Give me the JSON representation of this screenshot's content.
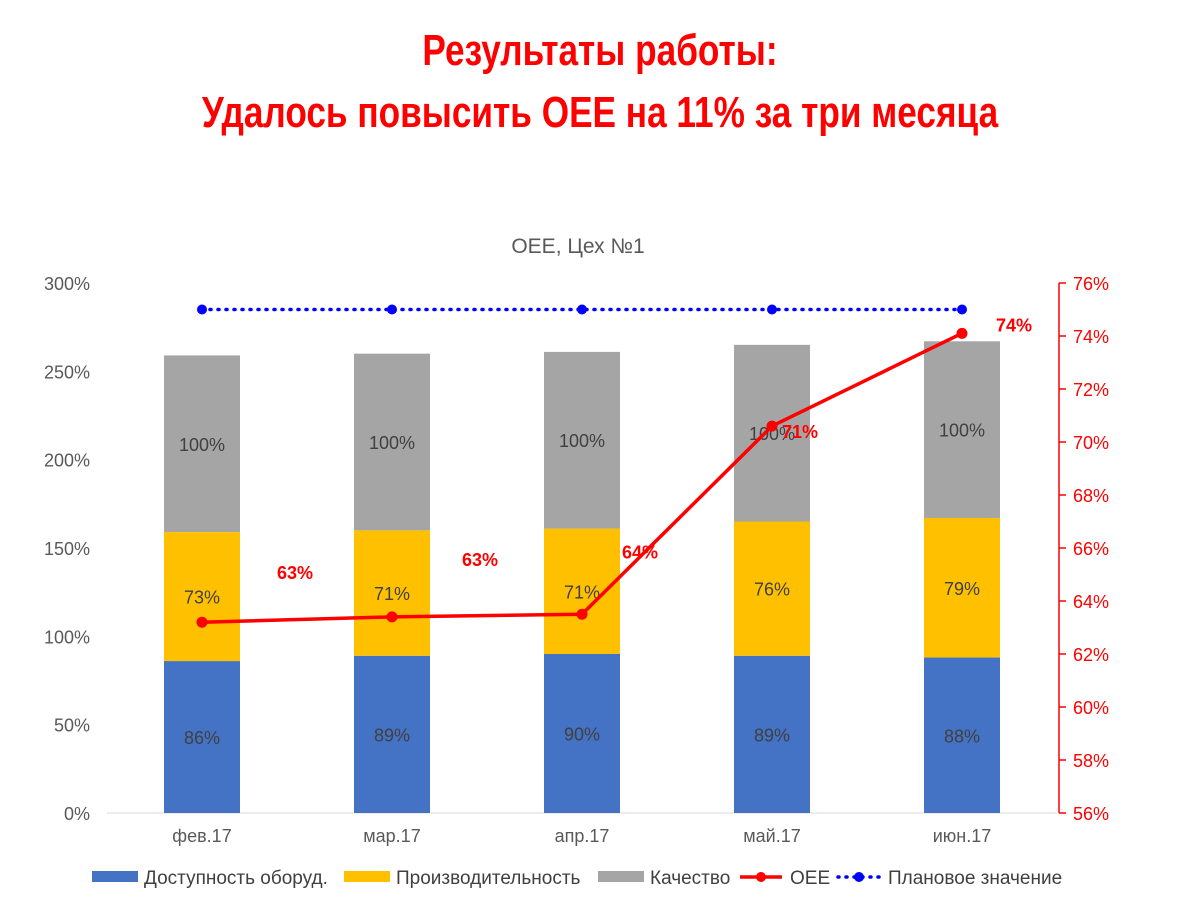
{
  "headline": {
    "line1": "Результаты работы:",
    "line2": "Удалось повысить ОЕЕ на 11% за три месяца"
  },
  "chart_data": {
    "type": "bar",
    "stacked": true,
    "title": "ОЕЕ, Цех №1",
    "categories": [
      "фев.17",
      "мар.17",
      "апр.17",
      "май.17",
      "июн.17"
    ],
    "y_left": {
      "min": 0,
      "max": 300,
      "step": 50,
      "unit": "%"
    },
    "y_right": {
      "min": 56,
      "max": 76,
      "step": 2,
      "unit": "%"
    },
    "series": [
      {
        "name": "Доступность оборуд.",
        "type": "bar",
        "color": "#4472c4",
        "values": [
          86,
          89,
          90,
          89,
          88
        ],
        "labels": [
          "86%",
          "89%",
          "90%",
          "89%",
          "88%"
        ]
      },
      {
        "name": "Производительность",
        "type": "bar",
        "color": "#ffc000",
        "values": [
          73,
          71,
          71,
          76,
          79
        ],
        "labels": [
          "73%",
          "71%",
          "71%",
          "76%",
          "79%"
        ]
      },
      {
        "name": "Качество",
        "type": "bar",
        "color": "#a5a5a5",
        "values": [
          100,
          100,
          100,
          100,
          100
        ],
        "labels": [
          "100%",
          "100%",
          "100%",
          "100%",
          "100%"
        ]
      },
      {
        "name": "ОЕЕ",
        "type": "line",
        "axis": "right",
        "color": "#ff0000",
        "values": [
          63.2,
          63.4,
          63.5,
          70.6,
          74.1
        ],
        "labels": [
          "63%",
          "63%",
          "64%",
          "71%",
          "74%"
        ]
      },
      {
        "name": "Плановое значение",
        "type": "line-dotted",
        "axis": "right",
        "color": "#0000ff",
        "values": [
          75,
          75,
          75,
          75,
          75
        ]
      }
    ],
    "legend_position": "bottom"
  }
}
